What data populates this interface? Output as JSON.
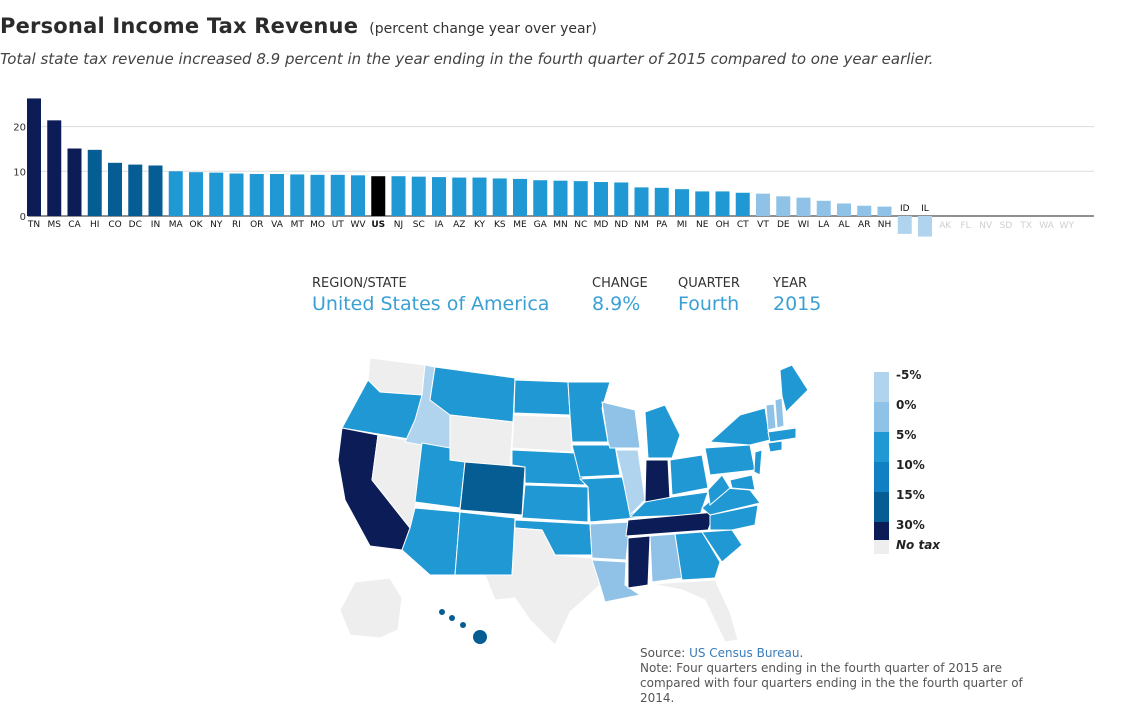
{
  "header": {
    "title": "Personal Income Tax Revenue",
    "subtitle": "(percent change year over year)",
    "description": "Total state tax revenue increased 8.9 percent in the year ending in the fourth quarter of 2015 compared to one year earlier."
  },
  "chart_data": {
    "type": "bar",
    "categories": [
      "TN",
      "MS",
      "CA",
      "HI",
      "CO",
      "DC",
      "IN",
      "MA",
      "OK",
      "NY",
      "RI",
      "OR",
      "VA",
      "MT",
      "MO",
      "UT",
      "WV",
      "US",
      "NJ",
      "SC",
      "IA",
      "AZ",
      "KY",
      "KS",
      "ME",
      "GA",
      "MN",
      "NC",
      "MD",
      "ND",
      "NM",
      "PA",
      "MI",
      "NE",
      "OH",
      "CT",
      "VT",
      "DE",
      "WI",
      "LA",
      "AL",
      "AR",
      "NH",
      "ID",
      "IL",
      "AK",
      "FL",
      "NV",
      "SD",
      "TX",
      "WA",
      "WY"
    ],
    "values": [
      26.3,
      21.4,
      15.1,
      14.8,
      11.9,
      11.5,
      11.3,
      10.0,
      9.8,
      9.7,
      9.5,
      9.4,
      9.4,
      9.3,
      9.2,
      9.2,
      9.1,
      8.9,
      8.9,
      8.8,
      8.7,
      8.6,
      8.6,
      8.4,
      8.3,
      8.0,
      7.9,
      7.8,
      7.6,
      7.5,
      6.4,
      6.3,
      6.0,
      5.5,
      5.5,
      5.2,
      5.0,
      4.4,
      4.1,
      3.4,
      2.8,
      2.3,
      2.1,
      -4.0,
      -4.6,
      0,
      0,
      0,
      0,
      0,
      0,
      0
    ],
    "no_tax": [
      "AK",
      "FL",
      "NV",
      "SD",
      "TX",
      "WA",
      "WY"
    ],
    "highlight": "US",
    "yticks": [
      0,
      10,
      20
    ],
    "ylim": [
      -5,
      27
    ],
    "grid": true
  },
  "selection": {
    "region_label": "REGION/STATE",
    "region_value": "United States of America",
    "change_label": "CHANGE",
    "change_value": "8.9%",
    "quarter_label": "QUARTER",
    "quarter_value": "Fourth",
    "year_label": "YEAR",
    "year_value": "2015"
  },
  "legend": {
    "items": [
      {
        "label": "-5%",
        "color": "#b1d4ee"
      },
      {
        "label": "0%",
        "color": "#8fc2e6"
      },
      {
        "label": "5%",
        "color": "#1f98d4"
      },
      {
        "label": "10%",
        "color": "#1180c2"
      },
      {
        "label": "15%",
        "color": "#055d94"
      },
      {
        "label": "30%",
        "color": "#0b1c57"
      }
    ],
    "no_tax_label": "No tax",
    "no_tax_color": "#eeeeee"
  },
  "source": {
    "prefix": "Source: ",
    "link": "US Census Bureau",
    "suffix": ".",
    "note": "Note: Four quarters ending in the fourth quarter of 2015 are compared with four quarters ending in the the fourth quarter of 2014."
  },
  "colors": {
    "bar_dark": "#0b1c57",
    "bar_mid_dark": "#055d94",
    "bar_blue": "#1f98d4",
    "bar_light": "#8fc2e6",
    "bar_lightest": "#b1d4ee",
    "bar_us": "#000000",
    "accent": "#3aa0d4"
  }
}
